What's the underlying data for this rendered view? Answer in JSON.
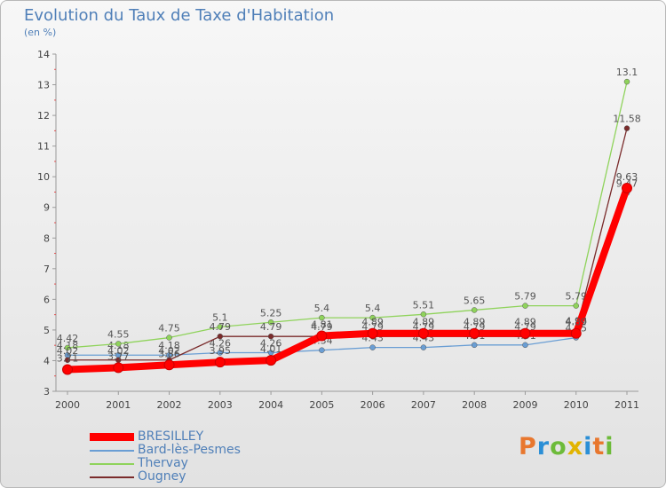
{
  "header": {
    "title": "Evolution du Taux de Taxe d'Habitation",
    "subtitle": "(en %)"
  },
  "brand": {
    "logo_text": "Proxiti",
    "letter_colors": [
      "#e8772e",
      "#2b8fd6",
      "#6dbb3a",
      "#e2b400",
      "#2b8fd6",
      "#e8772e",
      "#6dbb3a"
    ]
  },
  "chart_data": {
    "type": "line",
    "title": "Evolution du Taux de Taxe d'Habitation",
    "ylabel": "(en %)",
    "xlabel": "",
    "categories": [
      "2000",
      "2001",
      "2002",
      "2003",
      "2004",
      "2005",
      "2006",
      "2007",
      "2008",
      "2009",
      "2010",
      "2011"
    ],
    "ylim": [
      3,
      14
    ],
    "yticks": [
      "3",
      "4",
      "5",
      "6",
      "7",
      "8",
      "9",
      "10",
      "11",
      "12",
      "13",
      "14"
    ],
    "grid": false,
    "legend_position": "bottom-left",
    "series": [
      {
        "name": "BRESILLEY",
        "color": "#ff0000",
        "emphasis": true,
        "values": [
          3.71,
          3.77,
          3.86,
          3.95,
          4.01,
          4.81,
          4.89,
          4.89,
          4.89,
          4.89,
          4.89,
          9.63
        ],
        "labels": [
          "3.71",
          "3.77",
          "3.86",
          "3.95",
          "4.01",
          "4.81",
          "4.89",
          "4.89",
          "4.89",
          "4.89",
          "4.89",
          "9.63"
        ]
      },
      {
        "name": "Bard-lès-Pesmes",
        "color": "#6a9ed4",
        "values": [
          4.18,
          4.18,
          4.18,
          4.26,
          4.26,
          4.34,
          4.43,
          4.43,
          4.51,
          4.51,
          4.75,
          9.47
        ],
        "labels": [
          "4.18",
          "4.18",
          "4.18",
          "4.26",
          "4.26",
          "4.34",
          "4.43",
          "4.43",
          "4.51",
          "4.51",
          "4.75",
          "9.47"
        ]
      },
      {
        "name": "Thervay",
        "color": "#8fd35b",
        "values": [
          4.42,
          4.55,
          4.75,
          5.1,
          5.25,
          5.4,
          5.4,
          5.51,
          5.65,
          5.79,
          5.79,
          13.1
        ],
        "labels": [
          "4.42",
          "4.55",
          "4.75",
          "5.1",
          "5.25",
          "5.4",
          "5.4",
          "5.51",
          "5.65",
          "5.79",
          "5.79",
          "13.1"
        ]
      },
      {
        "name": "Ougney",
        "color": "#7a2b2b",
        "values": [
          4.02,
          4.02,
          4.02,
          4.79,
          4.79,
          4.79,
          4.79,
          4.79,
          4.79,
          4.79,
          4.98,
          11.58
        ],
        "labels": [
          "4.02",
          "4.02",
          "4.02",
          "4.79",
          "4.79",
          "4.79",
          "4.79",
          "4.79",
          "4.79",
          "4.79",
          "4.98",
          "11.58"
        ]
      }
    ]
  }
}
